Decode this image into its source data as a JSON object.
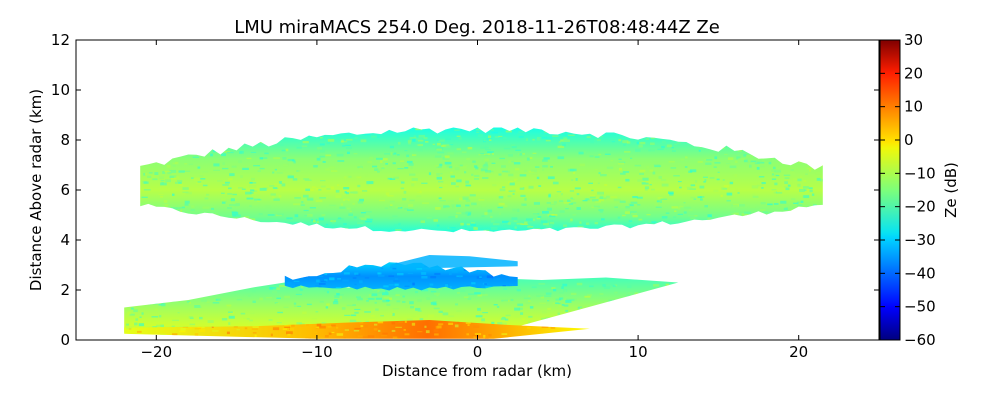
{
  "chart_data": {
    "type": "heatmap",
    "title": "LMU miraMACS 254.0 Deg. 2018-11-26T08:48:44Z  Ze",
    "xlabel": "Distance from radar (km)",
    "ylabel": "Distance Above radar  (km)",
    "xlim": [
      -25,
      25
    ],
    "ylim": [
      0,
      12
    ],
    "xticks": [
      -20,
      -10,
      0,
      10,
      20
    ],
    "xtick_labels": [
      "−20",
      "−10",
      "0",
      "10",
      "20"
    ],
    "yticks": [
      0,
      2,
      4,
      6,
      8,
      10,
      12
    ],
    "ytick_labels": [
      "0",
      "2",
      "4",
      "6",
      "8",
      "10",
      "12"
    ],
    "grid": false,
    "colorbar": {
      "label": "Ze (dB)",
      "colormap": "jet",
      "range": [
        -60,
        30
      ],
      "ticks": [
        -60,
        -50,
        -40,
        -30,
        -20,
        -10,
        0,
        10,
        20,
        30
      ],
      "tick_labels": [
        "−60",
        "−50",
        "−40",
        "−30",
        "−20",
        "−10",
        "0",
        "10",
        "20",
        "30"
      ]
    },
    "regions": [
      {
        "name": "upper-cloud-layer",
        "x_range": [
          -21,
          21.5
        ],
        "height_km": [
          4.3,
          8.5
        ],
        "ze_dB": [
          -25,
          -8
        ],
        "ze_peak_dB": -10
      },
      {
        "name": "lower-dark-layer",
        "x_range": [
          -12,
          2.5
        ],
        "height_km": [
          2.0,
          3.4
        ],
        "ze_dB": [
          -40,
          -28
        ],
        "ze_peak_dB": -33
      },
      {
        "name": "lower-cloud-wedge",
        "x_range": [
          -22,
          12.5
        ],
        "height_km": [
          0.3,
          2.3
        ],
        "ze_dB": [
          -25,
          -8
        ]
      },
      {
        "name": "near-surface-echo",
        "x_range": [
          -22,
          7
        ],
        "height_km": [
          0,
          0.8
        ],
        "ze_dB": [
          -10,
          10
        ],
        "ze_peak_dB": 10
      }
    ]
  }
}
